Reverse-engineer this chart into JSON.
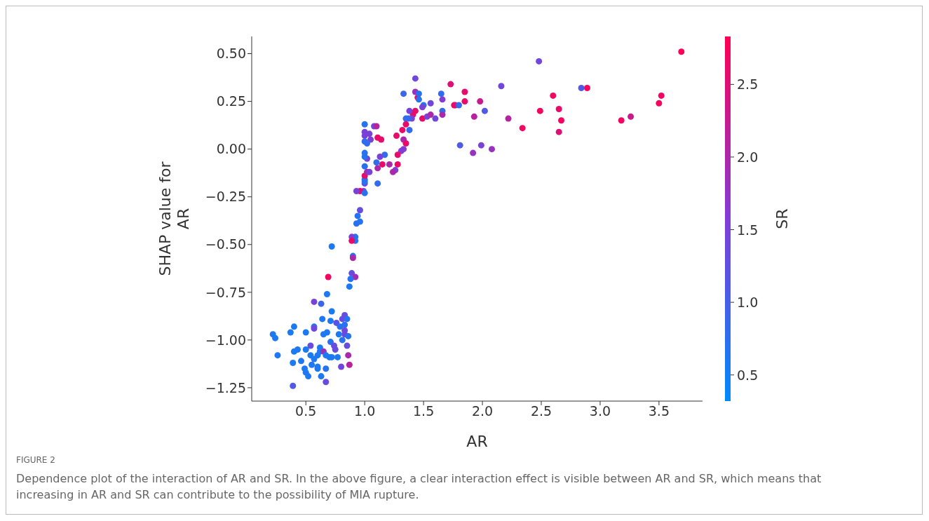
{
  "chart_data": {
    "type": "scatter",
    "xlabel": "AR",
    "ylabel": "SHAP value for AR",
    "clabel": "SR",
    "annotations": [
      "FIGURE 2",
      "Dependence plot of the interaction of AR and SR. In the above figure, a clear interaction effect is visible between AR and SR, which means that increasing in AR and SR can contribute to the possibility of MIA rupture."
    ],
    "xlim": [
      0.04,
      3.87
    ],
    "xticks": [
      0.5,
      {
        "value": 1,
        "label": "1.0"
      },
      1.5,
      {
        "value": 2,
        "label": "2.0"
      },
      2.5,
      {
        "value": 3,
        "label": "3.0"
      },
      3.5
    ],
    "ylim": [
      -1.32,
      0.59
    ],
    "yticks": [
      {
        "value": -1.25,
        "label": "−1.25"
      },
      {
        "value": -1,
        "label": "−1.00"
      },
      {
        "value": -0.75,
        "label": "−0.75"
      },
      {
        "value": -0.5,
        "label": "−0.50"
      },
      {
        "value": -0.25,
        "label": "−0.25"
      },
      {
        "value": 0,
        "label": "0.00"
      },
      {
        "value": 0.25,
        "label": "0.25"
      },
      {
        "value": 0.5,
        "label": "0.50"
      }
    ],
    "clim": [
      0.32,
      2.83
    ],
    "cticks": [
      0.5,
      {
        "value": 1,
        "label": "1.0"
      },
      1.5,
      {
        "value": 2,
        "label": "2.0"
      },
      2.5
    ],
    "grid": false,
    "marker": "circle",
    "x": [
      2.48,
      3.69,
      2.89,
      2.84,
      3.52,
      3.5,
      3.26,
      3.18,
      2.6,
      2.65,
      2.67,
      2.65,
      2.49,
      2.34,
      2.22,
      2.16,
      2.02,
      1.99,
      2.08,
      1.92,
      1.93,
      1.98,
      1.85,
      1.85,
      1.73,
      1.77,
      1.81,
      1.43,
      1.33,
      1.43,
      1.45,
      1.46,
      1.46,
      1.65,
      1.66,
      1.76,
      1.8,
      1.5,
      1.56,
      1.49,
      1.43,
      1.41,
      1.38,
      1.4,
      1.37,
      1.49,
      1.53,
      1.56,
      1.6,
      1.66,
      1.66,
      1.35,
      1.35,
      1.32,
      1.38,
      1.33,
      1.35,
      1.33,
      1.31,
      1.27,
      1.28,
      1.28,
      1.26,
      1.24,
      1.21,
      1.17,
      1.15,
      1.11,
      1.1,
      1.13,
      1.11,
      1.02,
      1.0,
      1.0,
      1.0,
      1.0,
      1.0,
      0.99,
      1.0,
      1.0,
      1.0,
      1.0,
      1.04,
      1.08,
      1.1,
      1.05,
      1.11,
      1.14,
      1.02,
      1.0,
      1.0,
      0.96,
      0.93,
      1.0,
      1.02,
      1.04,
      0.96,
      0.94,
      0.96,
      0.93,
      0.92,
      0.89,
      0.92,
      0.89,
      0.9,
      0.9,
      0.72,
      0.69,
      0.89,
      0.92,
      0.88,
      0.87,
      0.68,
      0.57,
      0.63,
      0.72,
      0.64,
      0.71,
      0.76,
      0.83,
      0.81,
      0.85,
      0.83,
      0.79,
      0.83,
      0.57,
      0.57,
      0.4,
      0.37,
      0.5,
      0.65,
      0.68,
      0.78,
      0.81,
      0.83,
      0.86,
      0.22,
      0.24,
      0.71,
      0.74,
      0.75,
      0.85,
      0.54,
      0.43,
      0.4,
      0.5,
      0.62,
      0.62,
      0.65,
      0.6,
      0.54,
      0.67,
      0.7,
      0.72,
      0.77,
      0.26,
      0.86,
      0.87,
      0.8,
      0.46,
      0.39,
      0.57,
      0.55,
      0.6,
      0.6,
      0.67,
      0.49,
      0.5,
      0.52,
      0.63,
      0.67,
      0.39
    ],
    "values": [
      0.46,
      0.51,
      0.32,
      0.32,
      0.28,
      0.24,
      0.17,
      0.15,
      0.28,
      0.21,
      0.15,
      0.09,
      0.2,
      0.11,
      0.16,
      0.33,
      0.2,
      0.02,
      0.0,
      -0.02,
      0.17,
      0.25,
      0.3,
      0.25,
      0.34,
      0.23,
      0.02,
      0.37,
      0.29,
      0.3,
      0.27,
      0.29,
      0.26,
      0.29,
      0.26,
      0.23,
      0.23,
      0.23,
      0.24,
      0.22,
      0.2,
      0.18,
      0.2,
      0.16,
      0.16,
      0.16,
      0.17,
      0.18,
      0.16,
      0.2,
      0.18,
      0.16,
      0.13,
      0.1,
      0.1,
      0.05,
      0.03,
      0.0,
      -0.01,
      0.07,
      -0.03,
      -0.08,
      -0.11,
      -0.12,
      -0.08,
      -0.03,
      -0.08,
      -0.1,
      -0.07,
      -0.04,
      -0.18,
      -0.05,
      -0.02,
      -0.04,
      -0.09,
      -0.16,
      -0.18,
      -0.22,
      0.13,
      0.09,
      0.07,
      0.04,
      0.08,
      0.12,
      0.12,
      0.05,
      0.06,
      0.05,
      0.03,
      -0.14,
      -0.17,
      -0.22,
      -0.22,
      -0.23,
      -0.12,
      -0.12,
      -0.32,
      -0.35,
      -0.38,
      -0.39,
      -0.46,
      -0.46,
      -0.48,
      -0.48,
      -0.56,
      -0.57,
      -0.51,
      -0.67,
      -0.65,
      -0.67,
      -0.68,
      -0.72,
      -0.76,
      -0.8,
      -0.81,
      -0.85,
      -0.89,
      -0.9,
      -0.91,
      -0.87,
      -0.89,
      -0.89,
      -0.92,
      -0.93,
      -0.95,
      -0.93,
      -0.94,
      -0.93,
      -0.96,
      -0.96,
      -0.97,
      -0.96,
      -0.97,
      -1.0,
      -0.97,
      -0.98,
      -0.97,
      -0.99,
      -1.01,
      -1.03,
      -1.05,
      -1.03,
      -1.03,
      -1.05,
      -1.06,
      -1.05,
      -1.04,
      -1.06,
      -1.06,
      -1.08,
      -1.08,
      -1.08,
      -1.09,
      -1.09,
      -1.09,
      -1.08,
      -1.08,
      -1.13,
      -1.14,
      -1.11,
      -1.12,
      -1.1,
      -1.13,
      -1.14,
      -1.15,
      -1.15,
      -1.15,
      -1.17,
      -1.19,
      -1.19,
      -1.22,
      -1.24
    ],
    "cvalues": [
      1.4,
      2.8,
      2.7,
      1.1,
      2.7,
      2.7,
      2.3,
      2.7,
      2.7,
      2.6,
      2.7,
      2.5,
      2.7,
      2.7,
      2.1,
      1.4,
      1.1,
      1.5,
      1.8,
      1.8,
      2.1,
      2.3,
      2.6,
      2.6,
      2.5,
      2.1,
      1.1,
      1.4,
      0.9,
      1.8,
      2.6,
      0.7,
      0.7,
      0.8,
      1.6,
      2.6,
      0.8,
      0.7,
      1.4,
      1.5,
      2.6,
      2.6,
      1.5,
      1.5,
      0.8,
      2.6,
      1.5,
      2.0,
      1.4,
      0.8,
      2.0,
      0.8,
      2.6,
      2.6,
      0.8,
      2.0,
      2.6,
      1.6,
      1.6,
      2.6,
      2.6,
      2.6,
      1.5,
      2.0,
      2.0,
      0.8,
      2.6,
      2.0,
      0.8,
      1.5,
      0.8,
      1.5,
      0.7,
      0.7,
      0.7,
      0.7,
      1.3,
      1.4,
      0.7,
      1.5,
      1.5,
      0.8,
      1.5,
      1.4,
      2.1,
      1.5,
      2.6,
      2.6,
      0.8,
      2.6,
      0.7,
      2.6,
      1.5,
      0.7,
      2.0,
      1.5,
      1.3,
      0.7,
      0.7,
      0.7,
      0.7,
      1.5,
      0.7,
      2.6,
      0.7,
      2.0,
      0.6,
      2.7,
      1.3,
      1.9,
      0.7,
      0.6,
      0.6,
      1.5,
      0.9,
      0.6,
      0.6,
      0.6,
      1.2,
      1.3,
      1.3,
      0.7,
      0.7,
      0.7,
      1.4,
      0.7,
      1.4,
      0.6,
      0.6,
      0.6,
      0.6,
      0.6,
      0.6,
      0.7,
      1.4,
      0.7,
      0.6,
      0.6,
      0.7,
      1.3,
      1.3,
      1.3,
      1.3,
      0.6,
      0.6,
      0.6,
      0.6,
      0.6,
      1.8,
      0.6,
      0.6,
      0.6,
      0.6,
      0.6,
      0.6,
      0.6,
      2.0,
      2.1,
      1.4,
      0.6,
      0.6,
      0.6,
      0.6,
      0.6,
      0.6,
      0.7,
      0.6,
      0.6,
      0.6,
      0.6,
      1.3,
      1.1
    ]
  }
}
